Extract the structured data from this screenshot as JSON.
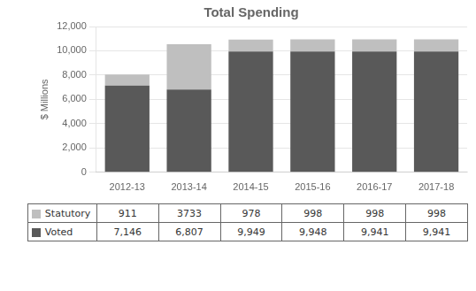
{
  "chart_data": {
    "type": "bar",
    "title": "Total Spending",
    "y_label": "$ Millions",
    "categories": [
      "2012-13",
      "2013-14",
      "2014-15",
      "2015-16",
      "2016-17",
      "2017-18"
    ],
    "series": [
      {
        "name": "Voted",
        "color": "#595959",
        "values": [
          7146,
          6807,
          9949,
          9948,
          9941,
          9941
        ],
        "value_labels": [
          "7,146",
          "6,807",
          "9,949",
          "9,948",
          "9,941",
          "9,941"
        ]
      },
      {
        "name": "Statutory",
        "color": "#bfbfbf",
        "values": [
          911,
          3733,
          978,
          998,
          998,
          998
        ],
        "value_labels": [
          "911",
          "3733",
          "978",
          "998",
          "998",
          "998"
        ]
      }
    ],
    "stacked": true,
    "ylim": [
      0,
      12000
    ],
    "yticks": [
      0,
      {
        "value": 2000,
        "label": "2,000"
      },
      {
        "value": 4000,
        "label": "4,000"
      },
      {
        "value": 6000,
        "label": "6,000"
      },
      {
        "value": 8000,
        "label": "8,000"
      },
      {
        "value": 10000,
        "label": "10,000"
      },
      {
        "value": 12000,
        "label": "12,000"
      }
    ],
    "grid": true
  }
}
